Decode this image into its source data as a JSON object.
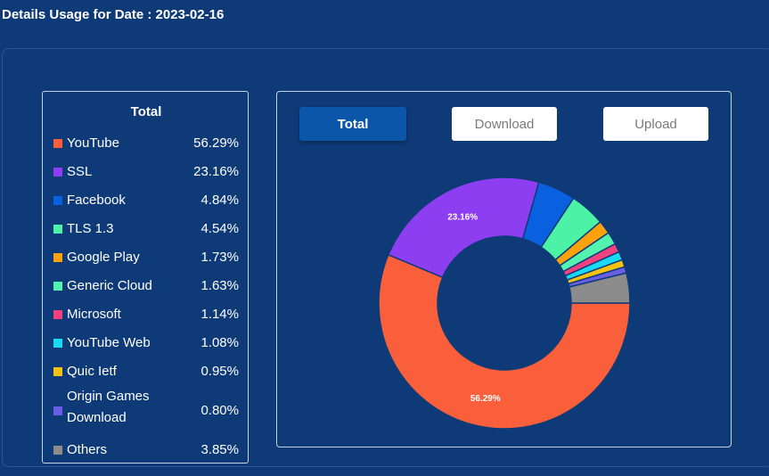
{
  "page": {
    "title": "Details Usage for Date : 2023-02-16"
  },
  "legend": {
    "title": "Total"
  },
  "tabs": {
    "total": "Total",
    "download": "Download",
    "upload": "Upload"
  },
  "chart_data": {
    "type": "pie",
    "variant": "donut",
    "title": "",
    "labels": [
      "YouTube",
      "SSL",
      "Facebook",
      "TLS 1.3",
      "Google Play",
      "Generic Cloud",
      "Microsoft",
      "YouTube Web",
      "Quic Ietf",
      "Origin Games Download",
      "Others"
    ],
    "values": [
      56.29,
      23.16,
      4.84,
      4.54,
      1.73,
      1.63,
      1.14,
      1.08,
      0.95,
      0.8,
      3.85
    ],
    "display_values": [
      "56.29%",
      "23.16%",
      "4.84%",
      "4.54%",
      "1.73%",
      "1.63%",
      "1.14%",
      "1.08%",
      "0.95%",
      "0.80%",
      "3.85%"
    ],
    "colors": [
      "#f95f3b",
      "#8c3ef0",
      "#0a61e0",
      "#4cf2a6",
      "#f9a20e",
      "#54f2b0",
      "#f2417e",
      "#1ad9f5",
      "#f7c20e",
      "#6a5ee6",
      "#8c8c8c"
    ],
    "slice_labels": [
      "56.29%",
      "23.16%",
      "",
      "",
      "",
      "",
      "",
      "",
      "",
      "",
      ""
    ],
    "legend_position": "left"
  }
}
